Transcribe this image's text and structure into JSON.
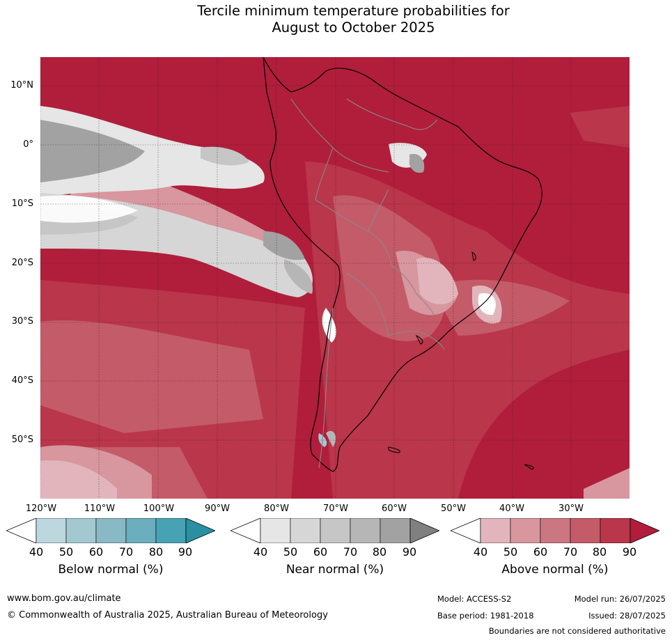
{
  "title": {
    "line1": "Tercile minimum temperature probabilities for",
    "line2": "August to October 2025"
  },
  "map": {
    "lat_labels": [
      "10°N",
      "0°",
      "10°S",
      "20°S",
      "30°S",
      "40°S",
      "50°S"
    ],
    "lon_labels": [
      "120°W",
      "110°W",
      "100°W",
      "90°W",
      "80°W",
      "70°W",
      "60°W",
      "50°W",
      "40°W",
      "30°W"
    ]
  },
  "legends": [
    {
      "title": "Below normal (%)",
      "ticks": [
        "40",
        "50",
        "60",
        "70",
        "80",
        "90"
      ],
      "colors": [
        "#ffffff",
        "#bdd7de",
        "#a3c8d0",
        "#89b9c4",
        "#6baebd",
        "#47a3b4",
        "#2a8fa3"
      ]
    },
    {
      "title": "Near normal (%)",
      "ticks": [
        "40",
        "50",
        "60",
        "70",
        "80",
        "90"
      ],
      "colors": [
        "#ffffff",
        "#e6e6e6",
        "#d6d6d6",
        "#c6c6c6",
        "#b6b6b6",
        "#a2a2a2",
        "#808080"
      ]
    },
    {
      "title": "Above normal (%)",
      "ticks": [
        "40",
        "50",
        "60",
        "70",
        "80",
        "90"
      ],
      "colors": [
        "#ffffff",
        "#e2b5bc",
        "#d8969f",
        "#cb7782",
        "#c45b69",
        "#b9364b",
        "#b01e3b"
      ]
    }
  ],
  "footer": {
    "website": "www.bom.gov.au/climate",
    "copyright": "© Commonwealth of Australia 2025, Australian Bureau of Meteorology",
    "model": "Model: ACCESS-S2",
    "base_period": "Base period: 1981-2018",
    "model_run": "Model run: 26/07/2025",
    "issued": "Issued: 28/07/2025",
    "boundaries": "Boundaries are not considered authoritative"
  }
}
